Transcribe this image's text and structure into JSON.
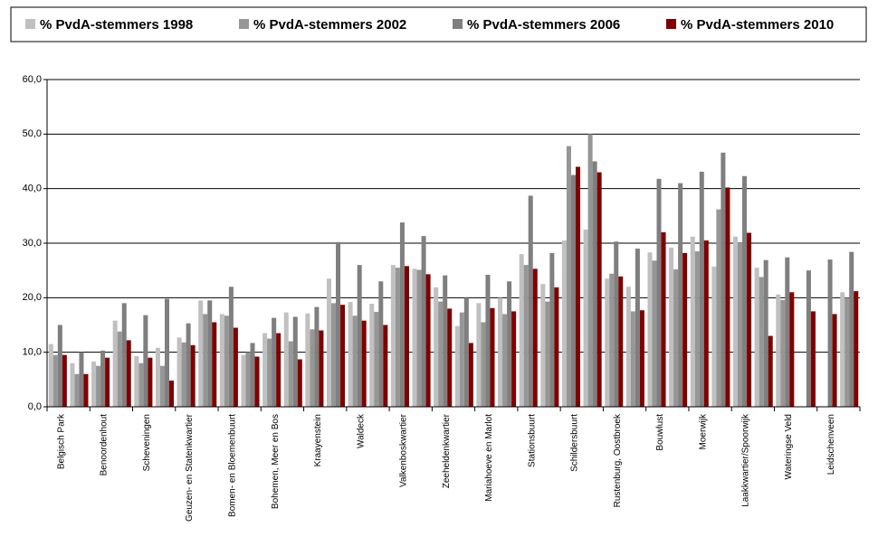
{
  "chart_data": {
    "type": "bar",
    "categories": [
      "Belgisch Park",
      null,
      "Benoordenhout",
      null,
      "Scheveningen",
      null,
      "Geuzen- en Statenkwartier",
      null,
      "Bomen- en Bloemenbuurt",
      null,
      "Bohemen, Meer en Bos",
      null,
      "Kraayenstein",
      null,
      "Waldeck",
      null,
      "Valkenboskwartier",
      null,
      "Zeeheldenkwartier",
      null,
      "Mariahoeve en Marlot",
      null,
      "Stationsbuurt",
      null,
      "Schildersbuurt",
      null,
      "Rustenburg, Oostbroek",
      null,
      "Bouwlust",
      null,
      "Moerwijk",
      null,
      "Laakkwartier/Spoorwijk",
      null,
      "Wateringse Veld",
      null,
      "Leidschenveen",
      null
    ],
    "series": [
      {
        "name": "% PvdA-stemmers 1998",
        "color": "#c0c0c0",
        "values": [
          11.5,
          8,
          8.3,
          15.8,
          9.3,
          10.8,
          12.7,
          19.5,
          17,
          9.5,
          13.5,
          17.3,
          17.1,
          23.5,
          19.2,
          18.9,
          26,
          25.3,
          21.9,
          14.8,
          19,
          20,
          28,
          22.5,
          30.5,
          32.5,
          23.5,
          22,
          28.3,
          29.2,
          31.2,
          25.7,
          31.2,
          25.5,
          20.6,
          null,
          null,
          21
        ]
      },
      {
        "name": "% PvdA-stemmers 2002",
        "color": "#969696",
        "values": [
          9.5,
          6,
          7.5,
          13.8,
          8,
          7.5,
          11.8,
          17,
          16.7,
          10,
          12.5,
          12,
          14.2,
          19,
          16.7,
          17.4,
          25.5,
          25.1,
          19.3,
          17.3,
          15.5,
          17,
          26,
          19.3,
          47.8,
          50,
          24.4,
          17.5,
          26.8,
          25.2,
          28.5,
          36.2,
          30,
          23.8,
          19.6,
          null,
          null,
          20
        ]
      },
      {
        "name": "% PvdA-stemmers 2006",
        "color": "#7f7f7f",
        "values": [
          15,
          10,
          10.3,
          19,
          16.8,
          19.8,
          15.3,
          19.5,
          22,
          11.7,
          16.3,
          16.5,
          18.3,
          30.2,
          26,
          23,
          33.8,
          31.3,
          24.1,
          20,
          24.2,
          23,
          38.7,
          28.2,
          42.5,
          45,
          30.3,
          29,
          41.8,
          41,
          43.1,
          46.6,
          42.3,
          26.9,
          27.4,
          25,
          27,
          28.4
        ]
      },
      {
        "name": "% PvdA-stemmers 2010",
        "color": "#800000",
        "values": [
          9.5,
          6,
          9,
          12.2,
          9,
          4.8,
          11.3,
          15.5,
          14.5,
          9.2,
          13.5,
          8.7,
          14,
          18.7,
          15.8,
          15,
          25.8,
          24.3,
          18,
          11.7,
          18.1,
          17.5,
          25.3,
          21.9,
          44,
          43,
          23.9,
          17.7,
          32,
          28.2,
          30.5,
          40.2,
          31.9,
          13,
          21,
          17.5,
          17,
          21.2
        ]
      }
    ],
    "ylim": [
      0,
      60
    ],
    "yticks": [
      {
        "value": 0,
        "label": "0,0"
      },
      {
        "value": 10,
        "label": "10,0"
      },
      {
        "value": 20,
        "label": "20,0"
      },
      {
        "value": 30,
        "label": "30,0"
      },
      {
        "value": 40,
        "label": "40,0"
      },
      {
        "value": 50,
        "label": "50,0"
      },
      {
        "value": 60,
        "label": "60,0"
      }
    ],
    "grid": true,
    "legend": "top"
  }
}
